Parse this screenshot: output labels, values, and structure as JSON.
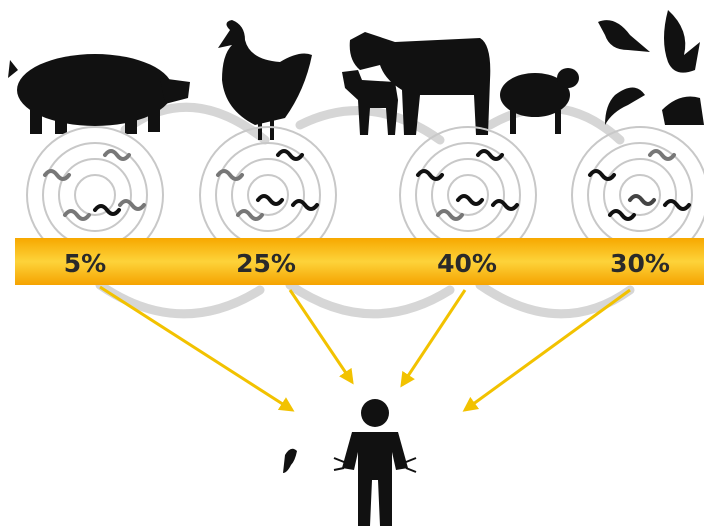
{
  "items": [
    {
      "label": "5%"
    },
    {
      "label": "25%"
    },
    {
      "label": "40%"
    },
    {
      "label": "30%"
    }
  ]
}
